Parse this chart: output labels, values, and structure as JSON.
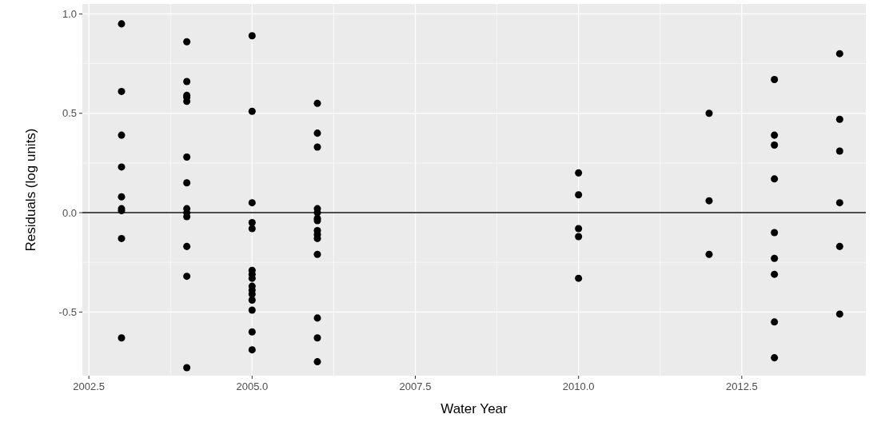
{
  "chart_data": {
    "type": "scatter",
    "xlabel": "Water Year",
    "ylabel": "Residuals (log units)",
    "xlim": [
      2002.4,
      2014.4
    ],
    "ylim": [
      -0.82,
      1.05
    ],
    "xticks": [
      {
        "value": 2002.5,
        "label": "2002.5"
      },
      {
        "value": 2005,
        "label": "2005.0"
      },
      {
        "value": 2007.5,
        "label": "2007.5"
      },
      {
        "value": 2010,
        "label": "2010.0"
      },
      {
        "value": 2012.5,
        "label": "2012.5"
      }
    ],
    "yticks": [
      {
        "value": -0.5,
        "label": "-0.5"
      },
      {
        "value": 0,
        "label": "0.0"
      },
      {
        "value": 0.5,
        "label": "0.5"
      },
      {
        "value": 1,
        "label": "1.0"
      }
    ],
    "grid": true,
    "marker": "circle",
    "ref_lines": [
      {
        "axis": "y",
        "value": 0,
        "color": "#4d4d4d"
      }
    ],
    "series": [
      {
        "color": "#000000",
        "x": [
          2003,
          2003,
          2003,
          2003,
          2003,
          2003,
          2003,
          2003,
          2003,
          2004,
          2004,
          2004,
          2004,
          2004,
          2004,
          2004,
          2004,
          2004,
          2004,
          2004,
          2004,
          2004,
          2005,
          2005,
          2005,
          2005,
          2005,
          2005,
          2005,
          2005,
          2005,
          2005,
          2005,
          2005,
          2005,
          2005,
          2005,
          2006,
          2006,
          2006,
          2006,
          2006,
          2006,
          2006,
          2006,
          2006,
          2006,
          2006,
          2006,
          2006,
          2006,
          2010,
          2010,
          2010,
          2010,
          2010,
          2012,
          2012,
          2012,
          2013,
          2013,
          2013,
          2013,
          2013,
          2013,
          2013,
          2013,
          2013,
          2014,
          2014,
          2014,
          2014,
          2014,
          2014
        ],
        "values": [
          0.95,
          0.61,
          0.39,
          0.23,
          0.08,
          0.02,
          0.01,
          -0.13,
          -0.63,
          0.86,
          0.66,
          0.59,
          0.58,
          0.56,
          0.28,
          0.15,
          0.02,
          0.0,
          -0.02,
          -0.17,
          -0.32,
          -0.78,
          0.89,
          0.51,
          0.05,
          -0.05,
          -0.08,
          -0.29,
          -0.31,
          -0.33,
          -0.37,
          -0.39,
          -0.41,
          -0.44,
          -0.49,
          -0.6,
          -0.69,
          0.55,
          0.4,
          0.33,
          0.02,
          0.0,
          -0.03,
          -0.04,
          -0.09,
          -0.11,
          -0.13,
          -0.21,
          -0.53,
          -0.63,
          -0.75,
          0.2,
          0.09,
          -0.08,
          -0.12,
          -0.33,
          0.5,
          0.06,
          -0.21,
          0.67,
          0.39,
          0.34,
          0.17,
          -0.1,
          -0.23,
          -0.31,
          -0.55,
          -0.73,
          0.8,
          0.47,
          0.31,
          0.05,
          -0.17,
          -0.51
        ]
      }
    ]
  }
}
